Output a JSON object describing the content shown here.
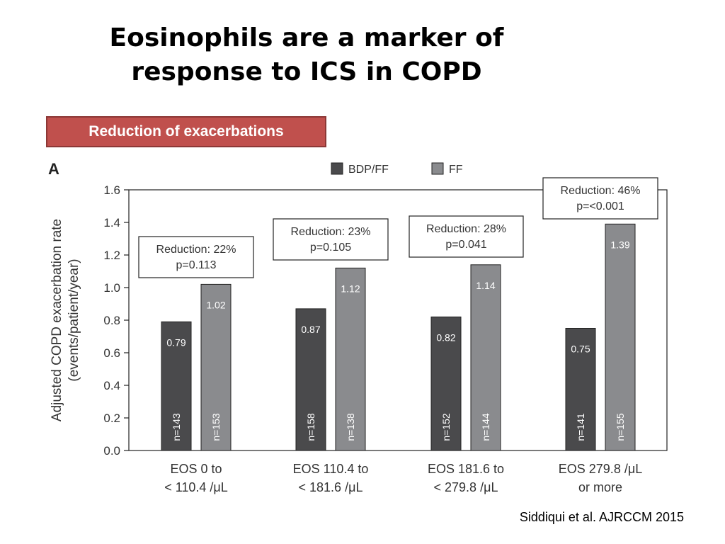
{
  "slide": {
    "title_line1": "Eosinophils are a marker of",
    "title_line2": "response to ICS in COPD",
    "banner": "Reduction of exacerbations",
    "citation": "Siddiqui et al. AJRCCM 2015",
    "banner_color": "#c0504d"
  },
  "chart_data": {
    "type": "bar",
    "panel_label": "A",
    "ylabel_line1": "Adjusted COPD exacerbation rate",
    "ylabel_line2": "(events/patient/year)",
    "ylim": [
      0,
      1.6
    ],
    "yticks": [
      "0.0",
      "0.2",
      "0.4",
      "0.6",
      "0.8",
      "1.0",
      "1.2",
      "1.4",
      "1.6"
    ],
    "legend_position": "top",
    "categories": [
      [
        "EOS 0 to",
        "< 110.4 /μL"
      ],
      [
        "EOS 110.4 to",
        "< 181.6 /μL"
      ],
      [
        "EOS 181.6 to",
        "< 279.8 /μL"
      ],
      [
        "EOS 279.8 /μL",
        "or more"
      ]
    ],
    "series": [
      {
        "name": "BDP/FF",
        "color": "#4a4a4c",
        "values": [
          0.79,
          0.87,
          0.82,
          0.75
        ],
        "value_labels": [
          "0.79",
          "0.87",
          "0.82",
          "0.75"
        ],
        "n": [
          "n=143",
          "n=158",
          "n=152",
          "n=141"
        ]
      },
      {
        "name": "FF",
        "color": "#8a8b8e",
        "values": [
          1.02,
          1.12,
          1.14,
          1.39
        ],
        "value_labels": [
          "1.02",
          "1.12",
          "1.14",
          "1.39"
        ],
        "n": [
          "n=153",
          "n=138",
          "n=144",
          "n=155"
        ]
      }
    ],
    "annotations": [
      {
        "line1": "Reduction: 22%",
        "line2": "p=0.113"
      },
      {
        "line1": "Reduction: 23%",
        "line2": "p=0.105"
      },
      {
        "line1": "Reduction: 28%",
        "line2": "p=0.041"
      },
      {
        "line1": "Reduction: 46%",
        "line2": "p=<0.001"
      }
    ]
  }
}
